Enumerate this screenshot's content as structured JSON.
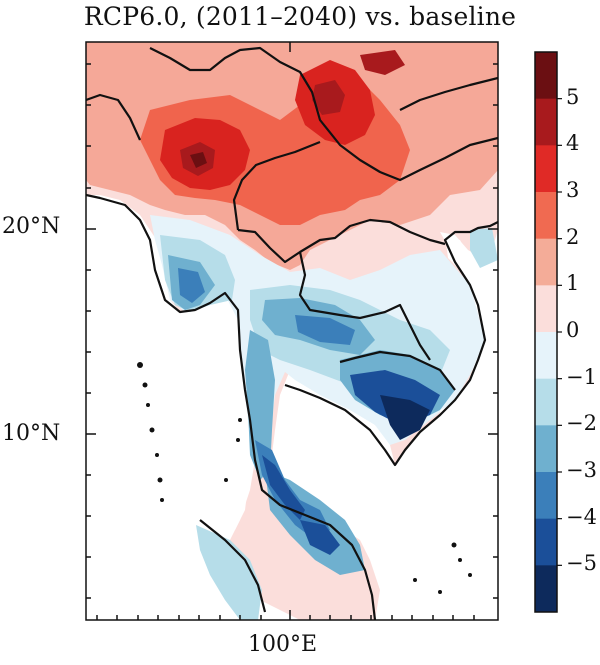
{
  "title": "RCP6.0, (2011–2040) vs. baseline",
  "axes": {
    "y_ticks": [
      "20°N",
      "10°N"
    ],
    "x_ticks": [
      "100°E"
    ]
  },
  "colorbar": {
    "labels": [
      "5",
      "4",
      "3",
      "2",
      "1",
      "0",
      "−1",
      "−2",
      "−3",
      "−4",
      "−5"
    ],
    "colors": [
      "#6b0f12",
      "#a81a1d",
      "#e02a26",
      "#f06a51",
      "#f4ac98",
      "#fbdedb",
      "#e6f3fa",
      "#b6dde9",
      "#6fb0cf",
      "#3b7fba",
      "#1b4f99",
      "#0d2a5c"
    ]
  },
  "map": {
    "region": "Mainland Southeast Asia",
    "colors": {
      "dark_red": "#7a0d10",
      "red": "#d9231f",
      "orange_red": "#f0644d",
      "salmon": "#f5a898",
      "light_pink": "#fbdedb",
      "light_blue": "#e6f3fa",
      "pale_blue": "#b6dde9",
      "mid_blue": "#6fb0cf",
      "blue": "#3b7fba",
      "dark_blue": "#1b4f99",
      "navy": "#0d2a5c"
    }
  }
}
